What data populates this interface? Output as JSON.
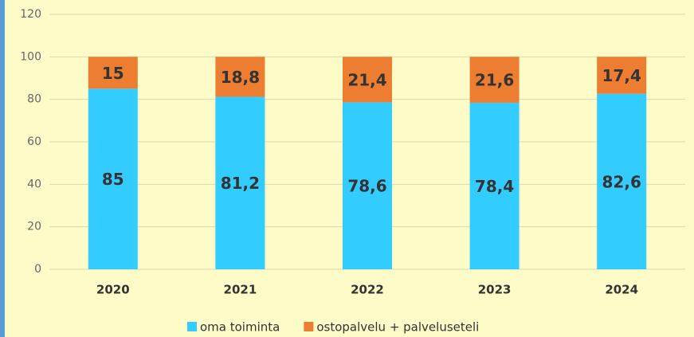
{
  "chart_data": {
    "type": "stacked_bar",
    "categories": [
      "2020",
      "2021",
      "2022",
      "2023",
      "2024"
    ],
    "series": [
      {
        "name": "oma toiminta",
        "color": "#33ccff",
        "values": [
          85,
          81.2,
          78.6,
          78.4,
          82.6
        ],
        "value_labels": [
          "85",
          "81,2",
          "78,6",
          "78,4",
          "82,6"
        ]
      },
      {
        "name": "ostopalvelu + palveluseteli",
        "color": "#ed7d31",
        "values": [
          15,
          18.8,
          21.4,
          21.6,
          17.4
        ],
        "value_labels": [
          "15",
          "18,8",
          "21,4",
          "21,6",
          "17,4"
        ]
      }
    ],
    "ylim": [
      0,
      120
    ],
    "yticks": [
      0,
      20,
      40,
      60,
      80,
      100,
      120
    ],
    "grid": true
  }
}
